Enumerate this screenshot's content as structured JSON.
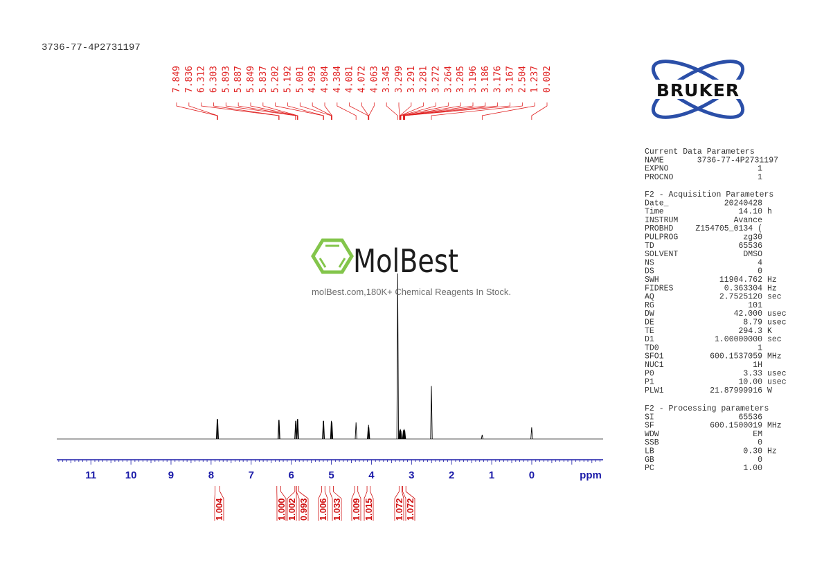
{
  "title": "3736-77-4P2731197",
  "watermark": {
    "brand": "MolBest",
    "tagline": "molBest.com,180K+ Chemical Reagents In Stock.",
    "color": "#7dc242"
  },
  "logo": {
    "text": "BRUKER",
    "color": "#2b4fa8"
  },
  "colors": {
    "spectrum": "#000000",
    "peak_labels": "#e02020",
    "axis": "#1a1aa8",
    "integrals": "#d01010",
    "params": "#333333"
  },
  "chart_data": {
    "type": "line",
    "title": "3736-77-4P2731197",
    "xlabel": "ppm",
    "xlim": [
      11.85,
      -1.78
    ],
    "x_reversed": true,
    "xticks": [
      "11",
      "10",
      "9",
      "8",
      "7",
      "6",
      "5",
      "4",
      "3",
      "2",
      "1",
      "0"
    ],
    "grid": false,
    "peaks": [
      {
        "ppm": 7.849,
        "height": 12
      },
      {
        "ppm": 7.836,
        "height": 12
      },
      {
        "ppm": 6.312,
        "height": 11.5
      },
      {
        "ppm": 6.303,
        "height": 11.5
      },
      {
        "ppm": 5.893,
        "height": 11
      },
      {
        "ppm": 5.887,
        "height": 11
      },
      {
        "ppm": 5.849,
        "height": 12
      },
      {
        "ppm": 5.837,
        "height": 12
      },
      {
        "ppm": 5.202,
        "height": 11
      },
      {
        "ppm": 5.192,
        "height": 11
      },
      {
        "ppm": 5.001,
        "height": 11
      },
      {
        "ppm": 4.993,
        "height": 10
      },
      {
        "ppm": 4.984,
        "height": 10
      },
      {
        "ppm": 4.384,
        "height": 10
      },
      {
        "ppm": 4.081,
        "height": 7
      },
      {
        "ppm": 4.072,
        "height": 8.5
      },
      {
        "ppm": 4.063,
        "height": 7
      },
      {
        "ppm": 3.345,
        "height": 100
      },
      {
        "ppm": 3.299,
        "height": 5
      },
      {
        "ppm": 3.291,
        "height": 5.5
      },
      {
        "ppm": 3.281,
        "height": 6
      },
      {
        "ppm": 3.272,
        "height": 5.5
      },
      {
        "ppm": 3.264,
        "height": 5
      },
      {
        "ppm": 3.205,
        "height": 5
      },
      {
        "ppm": 3.196,
        "height": 5.5
      },
      {
        "ppm": 3.186,
        "height": 6
      },
      {
        "ppm": 3.176,
        "height": 5.5
      },
      {
        "ppm": 3.167,
        "height": 5
      },
      {
        "ppm": 2.504,
        "height": 32
      },
      {
        "ppm": 1.237,
        "height": 2.5
      },
      {
        "ppm": 0.002,
        "height": 7
      }
    ],
    "peak_labels": [
      "7.849",
      "7.836",
      "6.312",
      "6.303",
      "5.893",
      "5.887",
      "5.849",
      "5.837",
      "5.202",
      "5.192",
      "5.001",
      "4.993",
      "4.984",
      "4.384",
      "4.081",
      "4.072",
      "4.063",
      "3.345",
      "3.299",
      "3.291",
      "3.281",
      "3.272",
      "3.264",
      "3.205",
      "3.196",
      "3.186",
      "3.176",
      "3.167",
      "2.504",
      "1.237",
      "0.002"
    ],
    "integrals": [
      {
        "value": "1.004",
        "range": [
          7.9,
          7.78
        ]
      },
      {
        "value": "1.000",
        "range": [
          6.36,
          6.26
        ]
      },
      {
        "value": "1.002",
        "range": [
          5.91,
          5.87
        ]
      },
      {
        "value": "0.993",
        "range": [
          5.87,
          5.81
        ]
      },
      {
        "value": "1.006",
        "range": [
          5.24,
          5.16
        ]
      },
      {
        "value": "1.033",
        "range": [
          5.04,
          4.95
        ]
      },
      {
        "value": "1.009",
        "range": [
          4.42,
          4.34
        ]
      },
      {
        "value": "1.015",
        "range": [
          4.11,
          4.03
        ]
      },
      {
        "value": "1.072",
        "range": [
          3.31,
          3.24
        ]
      },
      {
        "value": "1.072",
        "range": [
          3.22,
          3.14
        ]
      }
    ]
  },
  "parameters": [
    {
      "header": "Current Data Parameters",
      "rows": [
        [
          "NAME",
          "3736-77-4P2731197",
          ""
        ],
        [
          "EXPNO",
          "1",
          ""
        ],
        [
          "PROCNO",
          "1",
          ""
        ]
      ]
    },
    {
      "header": "F2 - Acquisition Parameters",
      "rows": [
        [
          "Date_",
          "20240428",
          ""
        ],
        [
          "Time",
          "14.10",
          "h"
        ],
        [
          "INSTRUM",
          "Avance",
          ""
        ],
        [
          "PROBHD",
          "Z154705_0134 (",
          ""
        ],
        [
          "PULPROG",
          "zg30",
          ""
        ],
        [
          "TD",
          "65536",
          ""
        ],
        [
          "SOLVENT",
          "DMSO",
          ""
        ],
        [
          "NS",
          "4",
          ""
        ],
        [
          "DS",
          "0",
          ""
        ],
        [
          "SWH",
          "11904.762",
          "Hz"
        ],
        [
          "FIDRES",
          "0.363304",
          "Hz"
        ],
        [
          "AQ",
          "2.7525120",
          "sec"
        ],
        [
          "RG",
          "101",
          ""
        ],
        [
          "DW",
          "42.000",
          "usec"
        ],
        [
          "DE",
          "8.79",
          "usec"
        ],
        [
          "TE",
          "294.3",
          "K"
        ],
        [
          "D1",
          "1.00000000",
          "sec"
        ],
        [
          "TD0",
          "1",
          ""
        ],
        [
          "SFO1",
          "600.1537059",
          "MHz"
        ],
        [
          "NUC1",
          "1H",
          ""
        ],
        [
          "P0",
          "3.33",
          "usec"
        ],
        [
          "P1",
          "10.00",
          "usec"
        ],
        [
          "PLW1",
          "21.87999916",
          "W"
        ]
      ]
    },
    {
      "header": "F2 - Processing parameters",
      "rows": [
        [
          "SI",
          "65536",
          ""
        ],
        [
          "SF",
          "600.1500019",
          "MHz"
        ],
        [
          "WDW",
          "EM",
          ""
        ],
        [
          "SSB",
          "0",
          ""
        ],
        [
          "LB",
          "0.30",
          "Hz"
        ],
        [
          "GB",
          "0",
          ""
        ],
        [
          "PC",
          "1.00",
          ""
        ]
      ]
    }
  ]
}
